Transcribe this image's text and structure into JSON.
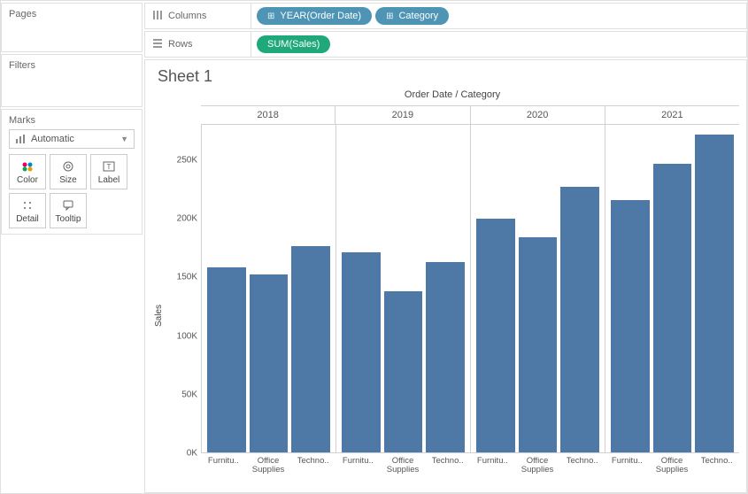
{
  "side": {
    "pages_title": "Pages",
    "filters_title": "Filters",
    "marks_title": "Marks",
    "marks_select": "Automatic",
    "marks_buttons": [
      {
        "name": "color-button",
        "label": "Color"
      },
      {
        "name": "size-button",
        "label": "Size"
      },
      {
        "name": "label-button",
        "label": "Label"
      },
      {
        "name": "detail-button",
        "label": "Detail"
      },
      {
        "name": "tooltip-button",
        "label": "Tooltip"
      }
    ]
  },
  "shelves": {
    "columns_label": "Columns",
    "rows_label": "Rows",
    "columns": [
      {
        "label": "YEAR(Order Date)",
        "color": "blue",
        "expandable": true
      },
      {
        "label": "Category",
        "color": "blue",
        "expandable": true
      }
    ],
    "rows": [
      {
        "label": "SUM(Sales)",
        "color": "green",
        "expandable": false
      }
    ]
  },
  "chart": {
    "sheet_title": "Sheet 1",
    "top_axis_title": "Order Date / Category",
    "y_label": "Sales",
    "type": "bar",
    "bar_color": "#4e79a7",
    "grid_color": "#d0d0d0",
    "background_color": "#ffffff",
    "ylim": [
      0,
      280000
    ],
    "yticks": [
      {
        "v": 0,
        "label": "0K"
      },
      {
        "v": 50000,
        "label": "50K"
      },
      {
        "v": 100000,
        "label": "100K"
      },
      {
        "v": 150000,
        "label": "150K"
      },
      {
        "v": 200000,
        "label": "200K"
      },
      {
        "v": 250000,
        "label": "250K"
      }
    ],
    "years": [
      "2018",
      "2019",
      "2020",
      "2021"
    ],
    "categories": [
      "Furniture",
      "Office Supplies",
      "Technology"
    ],
    "category_labels": [
      "Furnitu..",
      "Office\nSupplies",
      "Techno.."
    ],
    "values": {
      "2018": [
        158000,
        152000,
        176000
      ],
      "2019": [
        171000,
        138000,
        163000
      ],
      "2020": [
        200000,
        184000,
        227000
      ],
      "2021": [
        216000,
        247000,
        272000
      ]
    }
  }
}
